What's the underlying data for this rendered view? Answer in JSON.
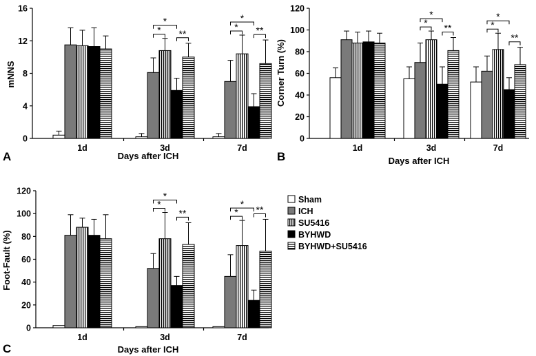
{
  "chart_data": [
    {
      "panel": "A",
      "type": "bar",
      "ylabel": "mNNS",
      "xlabel": "Days after ICH",
      "ylim": [
        0,
        16
      ],
      "yticks": [
        0,
        4,
        8,
        12,
        16
      ],
      "ytick_labels": [
        "0",
        "4",
        "8",
        "12",
        "16"
      ],
      "categories": [
        "1d",
        "3d",
        "7d"
      ],
      "series": [
        {
          "name": "Sham",
          "values": [
            0.4,
            0.2,
            0.2
          ],
          "errors": [
            0.5,
            0.4,
            0.4
          ]
        },
        {
          "name": "ICH",
          "values": [
            11.5,
            8.1,
            7.0
          ],
          "errors": [
            2.1,
            1.8,
            2.6
          ]
        },
        {
          "name": "SU5416",
          "values": [
            11.4,
            10.8,
            10.4
          ],
          "errors": [
            1.9,
            1.5,
            2.3
          ]
        },
        {
          "name": "BYHWD",
          "values": [
            11.3,
            5.9,
            3.9
          ],
          "errors": [
            2.3,
            1.5,
            1.6
          ]
        },
        {
          "name": "BYHWD+SU5416",
          "values": [
            11.0,
            10.0,
            9.2
          ],
          "errors": [
            1.6,
            1.7,
            2.9
          ]
        }
      ],
      "significance": [
        {
          "group": "3d",
          "from": "ICH",
          "to": "BYHWD",
          "label": "*"
        },
        {
          "group": "3d",
          "from": "ICH",
          "to": "SU5416",
          "label": "*"
        },
        {
          "group": "3d",
          "from": "BYHWD",
          "to": "BYHWD+SU5416",
          "label": "**"
        },
        {
          "group": "7d",
          "from": "ICH",
          "to": "BYHWD",
          "label": "*"
        },
        {
          "group": "7d",
          "from": "ICH",
          "to": "SU5416",
          "label": "*"
        },
        {
          "group": "7d",
          "from": "BYHWD",
          "to": "BYHWD+SU5416",
          "label": "**"
        }
      ]
    },
    {
      "panel": "B",
      "type": "bar",
      "ylabel": "Corner Turn (%)",
      "xlabel": "Days after ICH",
      "ylim": [
        0,
        120
      ],
      "yticks": [
        0,
        20,
        40,
        60,
        80,
        100,
        120
      ],
      "ytick_labels": [
        "0",
        "20",
        "40",
        "60",
        "80",
        "100",
        "120"
      ],
      "categories": [
        "1d",
        "3d",
        "7d"
      ],
      "series": [
        {
          "name": "Sham",
          "values": [
            56,
            55,
            52
          ],
          "errors": [
            9,
            11,
            14
          ]
        },
        {
          "name": "ICH",
          "values": [
            91,
            70,
            62
          ],
          "errors": [
            8,
            18,
            14
          ]
        },
        {
          "name": "SU5416",
          "values": [
            88,
            91,
            82
          ],
          "errors": [
            10,
            8,
            15
          ]
        },
        {
          "name": "BYHWD",
          "values": [
            89,
            50,
            45
          ],
          "errors": [
            10,
            16,
            11
          ]
        },
        {
          "name": "BYHWD+SU5416",
          "values": [
            88,
            81,
            68
          ],
          "errors": [
            9,
            12,
            16
          ]
        }
      ],
      "significance": [
        {
          "group": "3d",
          "from": "ICH",
          "to": "BYHWD",
          "label": "*"
        },
        {
          "group": "3d",
          "from": "ICH",
          "to": "SU5416",
          "label": "*"
        },
        {
          "group": "3d",
          "from": "BYHWD",
          "to": "BYHWD+SU5416",
          "label": "**"
        },
        {
          "group": "7d",
          "from": "ICH",
          "to": "BYHWD",
          "label": "*"
        },
        {
          "group": "7d",
          "from": "ICH",
          "to": "SU5416",
          "label": "*"
        },
        {
          "group": "7d",
          "from": "BYHWD",
          "to": "BYHWD+SU5416",
          "label": "**"
        }
      ]
    },
    {
      "panel": "C",
      "type": "bar",
      "ylabel": "Foot-Fault (%)",
      "xlabel": "Days after ICH",
      "ylim": [
        0,
        120
      ],
      "yticks": [
        0,
        20,
        40,
        60,
        80,
        100,
        120
      ],
      "ytick_labels": [
        "0",
        "20",
        "40",
        "60",
        "80",
        "100",
        "120"
      ],
      "categories": [
        "1d",
        "3d",
        "7d"
      ],
      "series": [
        {
          "name": "Sham",
          "values": [
            2,
            1,
            1
          ],
          "errors": [
            0,
            0,
            0
          ]
        },
        {
          "name": "ICH",
          "values": [
            81,
            52,
            45
          ],
          "errors": [
            18,
            13,
            19
          ]
        },
        {
          "name": "SU5416",
          "values": [
            88,
            78,
            72
          ],
          "errors": [
            8,
            23,
            22
          ]
        },
        {
          "name": "BYHWD",
          "values": [
            81,
            37,
            24
          ],
          "errors": [
            14,
            8,
            9
          ]
        },
        {
          "name": "BYHWD+SU5416",
          "values": [
            78,
            73,
            67
          ],
          "errors": [
            21,
            19,
            28
          ]
        }
      ],
      "significance": [
        {
          "group": "3d",
          "from": "ICH",
          "to": "BYHWD",
          "label": "*"
        },
        {
          "group": "3d",
          "from": "ICH",
          "to": "SU5416",
          "label": "*"
        },
        {
          "group": "3d",
          "from": "BYHWD",
          "to": "BYHWD+SU5416",
          "label": "**"
        },
        {
          "group": "7d",
          "from": "ICH",
          "to": "BYHWD",
          "label": "*"
        },
        {
          "group": "7d",
          "from": "ICH",
          "to": "SU5416",
          "label": "*"
        },
        {
          "group": "7d",
          "from": "BYHWD",
          "to": "BYHWD+SU5416",
          "label": "**"
        }
      ]
    }
  ],
  "legend": {
    "placement": "right-of-panel-C",
    "entries": [
      {
        "name": "Sham",
        "fill": "white"
      },
      {
        "name": "ICH",
        "fill": "gray"
      },
      {
        "name": "SU5416",
        "fill": "vertical-stripes"
      },
      {
        "name": "BYHWD",
        "fill": "black"
      },
      {
        "name": "BYHWD+SU5416",
        "fill": "horizontal-stripes"
      }
    ]
  },
  "colors": {
    "ich_gray": "#7a7a7a",
    "ink": "#000000",
    "background": "#ffffff"
  }
}
